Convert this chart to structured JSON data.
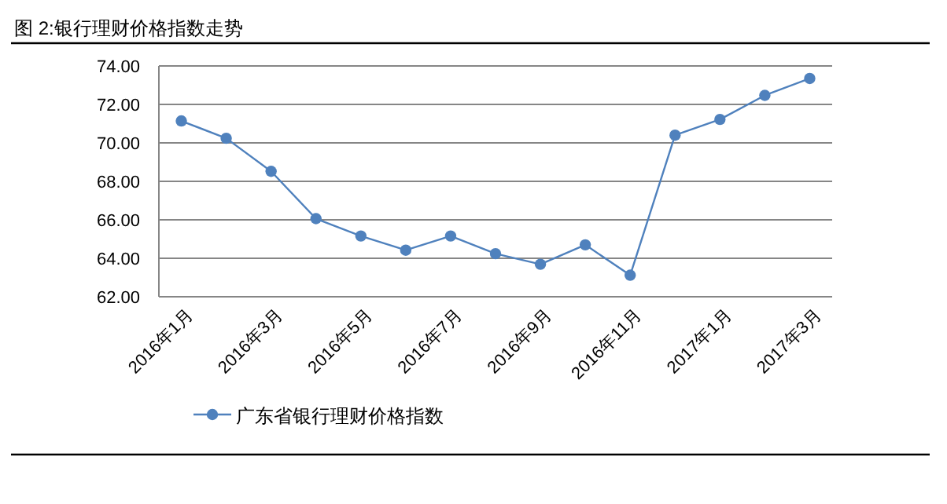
{
  "chart_data": {
    "type": "line",
    "title": "图 2:银行理财价格指数走势",
    "categories": [
      "2016年1月",
      null,
      "2016年3月",
      null,
      "2016年5月",
      null,
      "2016年7月",
      null,
      "2016年9月",
      null,
      "2016年11月",
      null,
      "2017年1月",
      null,
      "2017年3月"
    ],
    "series": [
      {
        "name": "广东省银行理财价格指数",
        "color": "#4f81bd",
        "values": [
          71.14,
          70.24,
          68.52,
          66.06,
          65.16,
          64.42,
          65.16,
          64.24,
          63.69,
          64.7,
          63.12,
          70.4,
          71.22,
          72.47,
          73.35
        ]
      }
    ],
    "ylim": [
      62,
      74
    ],
    "yticks": [
      {
        "value": 62,
        "label": "62.00"
      },
      {
        "value": 64,
        "label": "64.00"
      },
      {
        "value": 66,
        "label": "66.00"
      },
      {
        "value": 68,
        "label": "68.00"
      },
      {
        "value": 70,
        "label": "70.00"
      },
      {
        "value": 72,
        "label": "72.00"
      },
      {
        "value": 74,
        "label": "74.00"
      }
    ],
    "grid": "y",
    "legend": "bottom",
    "marker": "circle"
  }
}
